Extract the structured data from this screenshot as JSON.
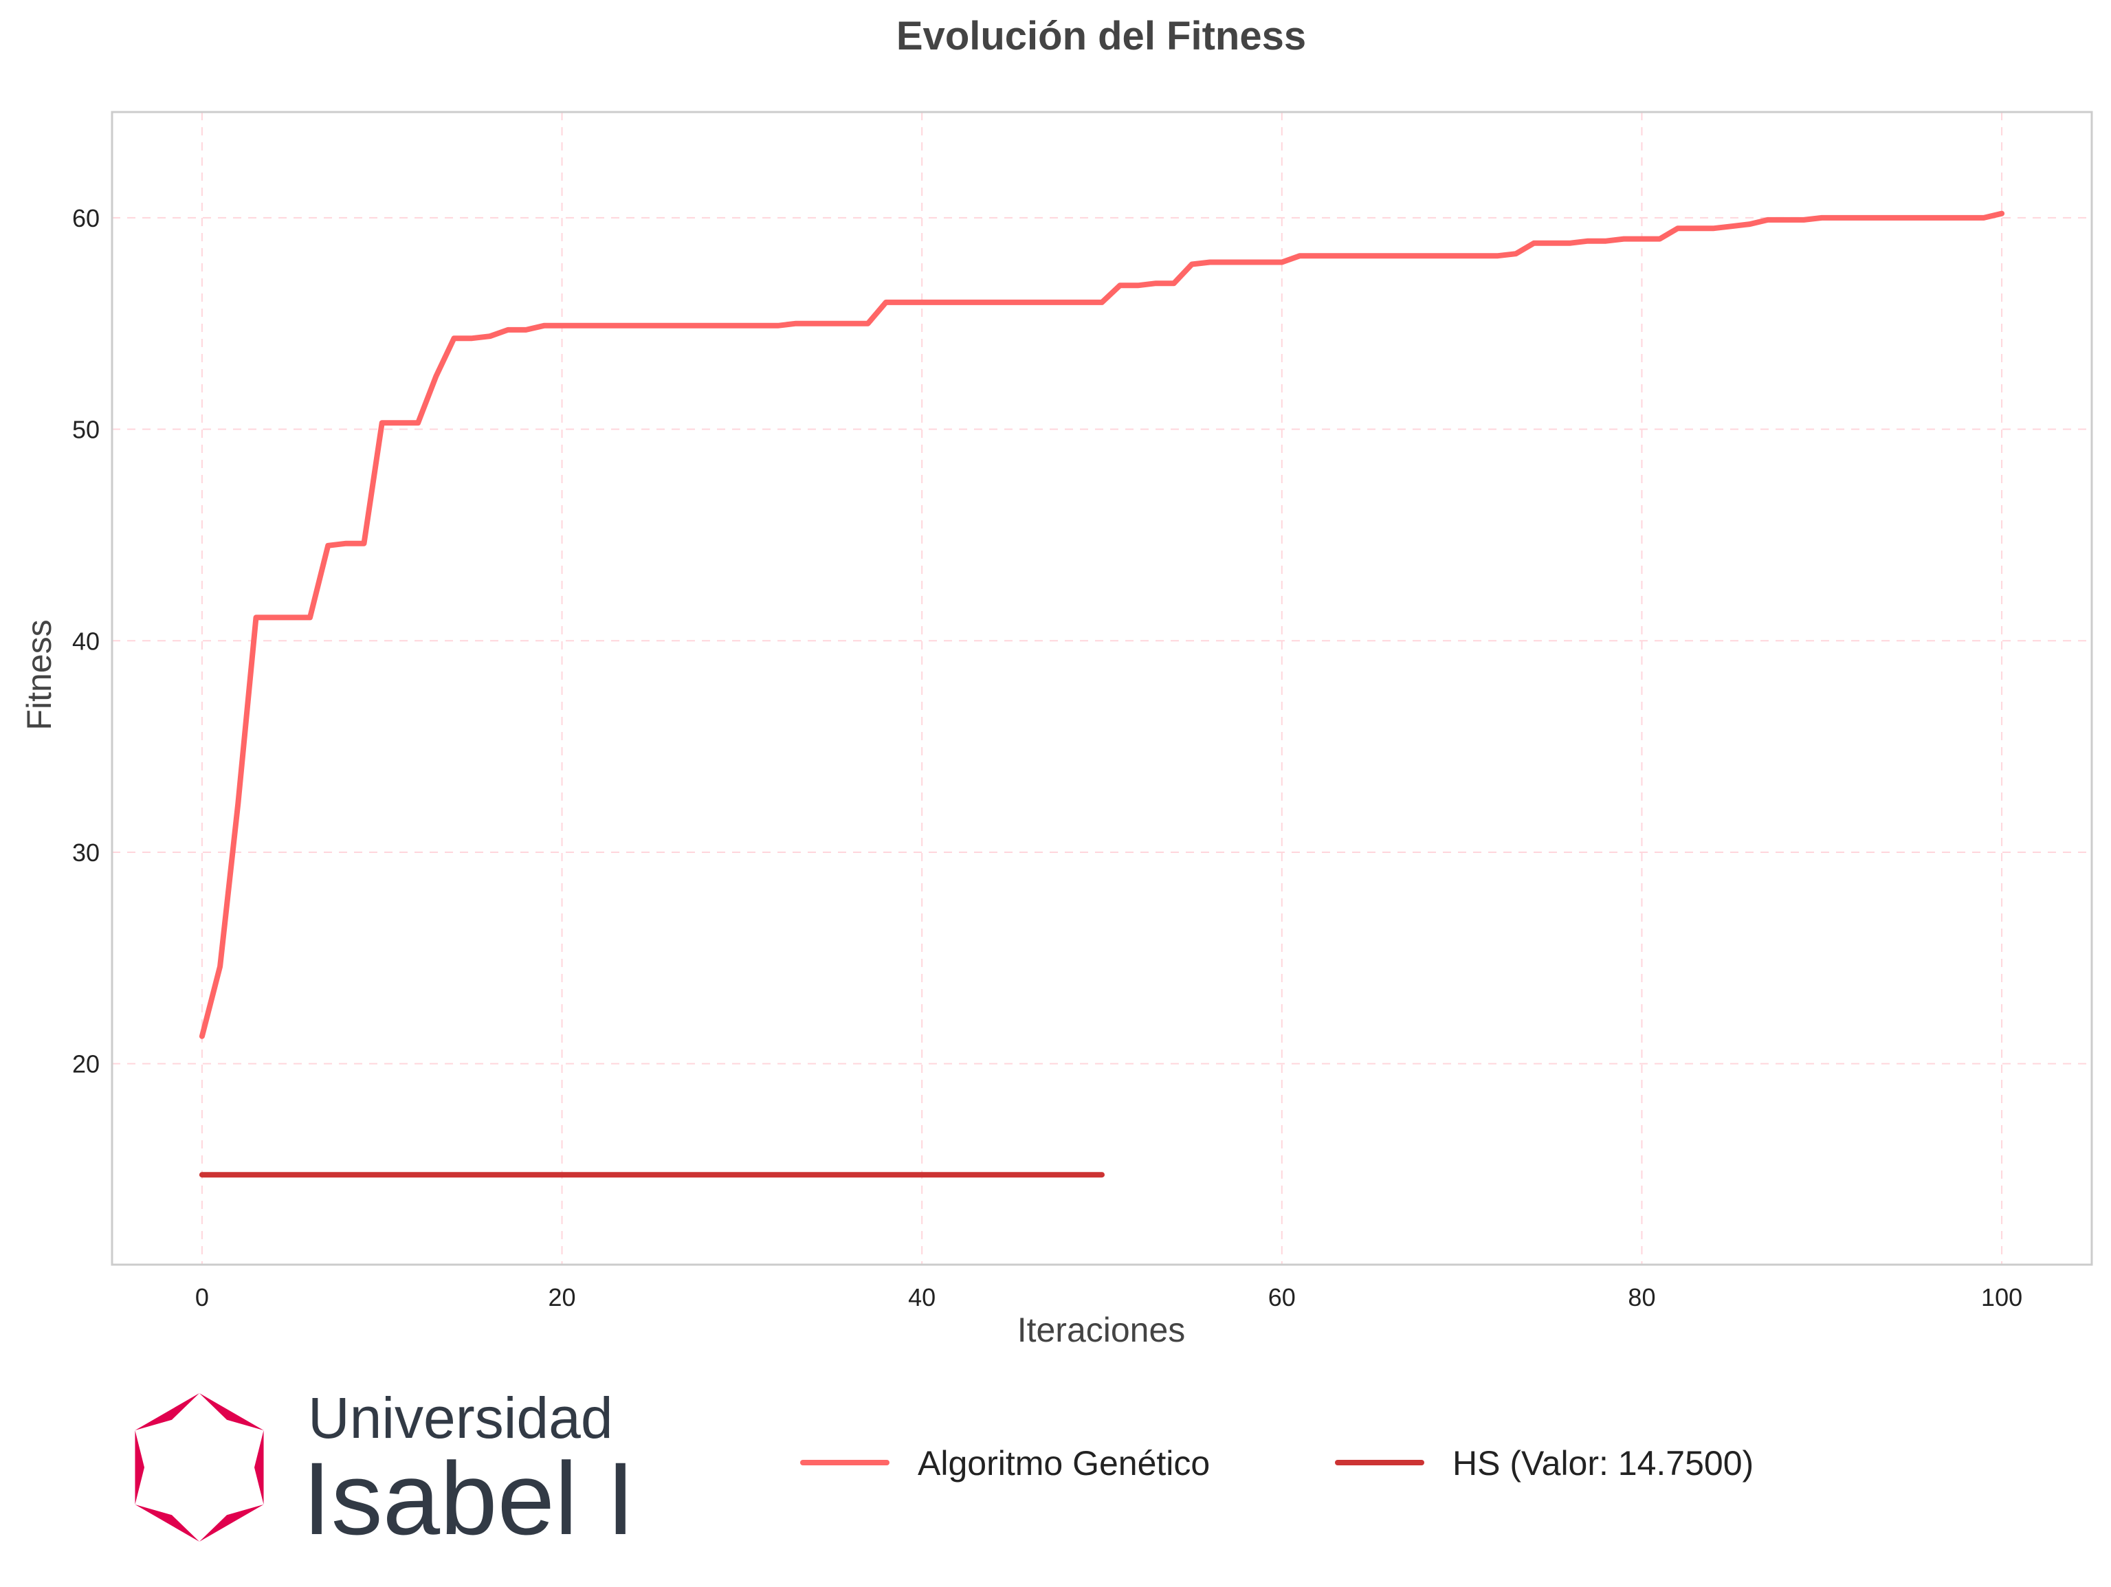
{
  "logo": {
    "line1": "Universidad",
    "line2": "Isabel I"
  },
  "colors": {
    "ga": "#ff6666",
    "hs": "#cc3333",
    "logo_mark": "#e0004d",
    "logo_text": "#323a45",
    "grid": "#ffd6dc",
    "text": "#444444"
  },
  "chart_data": {
    "type": "line",
    "title": "Evolución del Fitness",
    "xlabel": "Iteraciones",
    "ylabel": "Fitness",
    "xlim": [
      -5,
      105
    ],
    "ylim": [
      10.5,
      65
    ],
    "xticks": [
      0,
      20,
      40,
      60,
      80,
      100
    ],
    "yticks": [
      20,
      30,
      40,
      50,
      60
    ],
    "grid": true,
    "legend_position": "bottom-center",
    "series": [
      {
        "name": "Algoritmo Genético",
        "x": [
          0,
          1,
          2,
          3,
          4,
          5,
          6,
          7,
          8,
          9,
          10,
          11,
          12,
          13,
          14,
          15,
          16,
          17,
          18,
          19,
          20,
          21,
          22,
          23,
          24,
          25,
          26,
          27,
          28,
          29,
          30,
          31,
          32,
          33,
          34,
          35,
          36,
          37,
          38,
          39,
          40,
          41,
          42,
          43,
          44,
          45,
          46,
          47,
          48,
          49,
          50,
          51,
          52,
          53,
          54,
          55,
          56,
          57,
          58,
          59,
          60,
          61,
          62,
          63,
          64,
          65,
          66,
          67,
          68,
          69,
          70,
          71,
          72,
          73,
          74,
          75,
          76,
          77,
          78,
          79,
          80,
          81,
          82,
          83,
          84,
          85,
          86,
          87,
          88,
          89,
          90,
          91,
          92,
          93,
          94,
          95,
          96,
          97,
          98,
          99,
          100
        ],
        "y": [
          21.3,
          24.6,
          32.3,
          41.1,
          41.1,
          41.1,
          41.1,
          44.5,
          44.6,
          44.6,
          50.3,
          50.3,
          50.3,
          52.5,
          54.3,
          54.3,
          54.4,
          54.7,
          54.7,
          54.9,
          54.9,
          54.9,
          54.9,
          54.9,
          54.9,
          54.9,
          54.9,
          54.9,
          54.9,
          54.9,
          54.9,
          54.9,
          54.9,
          55.0,
          55.0,
          55.0,
          55.0,
          55.0,
          56.0,
          56.0,
          56.0,
          56.0,
          56.0,
          56.0,
          56.0,
          56.0,
          56.0,
          56.0,
          56.0,
          56.0,
          56.0,
          56.8,
          56.8,
          56.9,
          56.9,
          57.8,
          57.9,
          57.9,
          57.9,
          57.9,
          57.9,
          58.2,
          58.2,
          58.2,
          58.2,
          58.2,
          58.2,
          58.2,
          58.2,
          58.2,
          58.2,
          58.2,
          58.2,
          58.3,
          58.8,
          58.8,
          58.8,
          58.9,
          58.9,
          59.0,
          59.0,
          59.0,
          59.5,
          59.5,
          59.5,
          59.6,
          59.7,
          59.9,
          59.9,
          59.9,
          60.0,
          60.0,
          60.0,
          60.0,
          60.0,
          60.0,
          60.0,
          60.0,
          60.0,
          60.0,
          60.2
        ]
      },
      {
        "name": "HS (Valor: 14.7500)",
        "x": [
          0,
          50
        ],
        "y": [
          14.75,
          14.75
        ]
      }
    ]
  }
}
